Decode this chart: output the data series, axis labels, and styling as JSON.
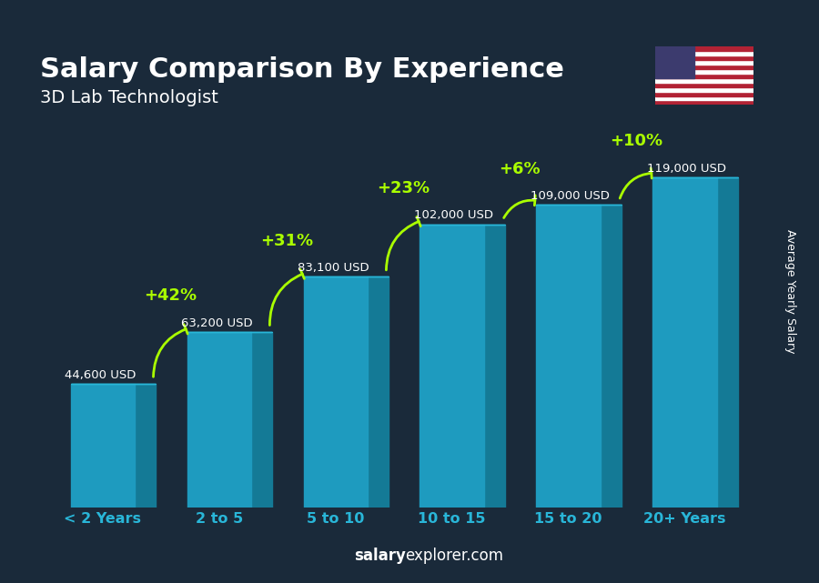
{
  "title": "Salary Comparison By Experience",
  "subtitle": "3D Lab Technologist",
  "categories": [
    "< 2 Years",
    "2 to 5",
    "5 to 10",
    "10 to 15",
    "15 to 20",
    "20+ Years"
  ],
  "values": [
    44600,
    63200,
    83100,
    102000,
    109000,
    119000
  ],
  "value_labels": [
    "44,600 USD",
    "63,200 USD",
    "83,100 USD",
    "102,000 USD",
    "109,000 USD",
    "119,000 USD"
  ],
  "pct_changes": [
    null,
    "+42%",
    "+31%",
    "+23%",
    "+6%",
    "+10%"
  ],
  "bar_color_top": "#29b6d8",
  "bar_color_mid": "#1e9bbf",
  "bar_color_side": "#147a96",
  "bg_color": "#1a2a3a",
  "title_color": "#ffffff",
  "subtitle_color": "#ffffff",
  "label_color": "#ffffff",
  "pct_color": "#aaff00",
  "xlabel_color": "#29b6d8",
  "footer_text": "salaryexplorer.com",
  "footer_bold": "salary",
  "ylabel_text": "Average Yearly Salary",
  "ylim_max": 145000
}
